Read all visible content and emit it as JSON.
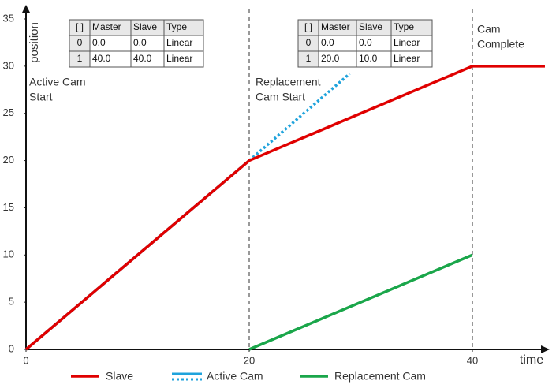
{
  "chart_data": {
    "type": "line",
    "x_label": "time",
    "y_label": "position",
    "xlim": [
      0,
      47
    ],
    "ylim": [
      0,
      35
    ],
    "xticks": [
      0,
      20,
      40
    ],
    "yticks": [
      0,
      5,
      10,
      15,
      20,
      25,
      30,
      35
    ],
    "vlines": [
      20,
      40
    ],
    "legend": "bottom",
    "series": [
      {
        "name": "Slave",
        "color": "#e00000",
        "x": [
          0,
          20,
          40,
          46.5
        ],
        "values": [
          0,
          20,
          30,
          30
        ]
      },
      {
        "name": "Active Cam",
        "color": "#1fa3dc",
        "x": [
          0,
          20,
          29
        ],
        "values": [
          0,
          20,
          29.2
        ],
        "segment_styles": [
          "solid",
          "dotted"
        ]
      },
      {
        "name": "Replacement Cam",
        "color": "#1aa64a",
        "x": [
          20,
          40
        ],
        "values": [
          0,
          10
        ]
      }
    ],
    "annotations": [
      {
        "x": 0,
        "lines": [
          "Active Cam",
          "Start"
        ]
      },
      {
        "x": 20,
        "lines": [
          "Replacement",
          "Cam Start"
        ]
      },
      {
        "x": 40,
        "lines": [
          "Cam",
          "Complete"
        ]
      }
    ],
    "tables": [
      {
        "header": [
          "[ ]",
          "Master",
          "Slave",
          "Type"
        ],
        "rows": [
          [
            "0",
            "0.0",
            "0.0",
            "Linear"
          ],
          [
            "1",
            "40.0",
            "40.0",
            "Linear"
          ]
        ]
      },
      {
        "header": [
          "[ ]",
          "Master",
          "Slave",
          "Type"
        ],
        "rows": [
          [
            "0",
            "0.0",
            "0.0",
            "Linear"
          ],
          [
            "1",
            "20.0",
            "10.0",
            "Linear"
          ]
        ]
      }
    ]
  }
}
